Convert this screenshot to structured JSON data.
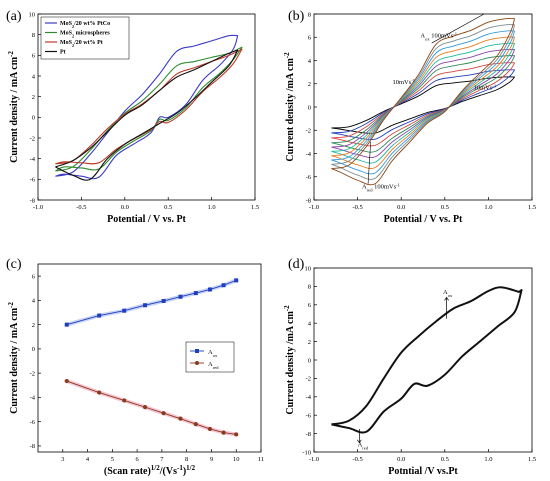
{
  "chart_data": [
    {
      "type": "line",
      "panel": "(a)",
      "xlabel": "Potential / V vs. Pt",
      "ylabel": "Current density / mA cm",
      "ylabel_sup": "-2",
      "xlim": [
        -1.0,
        1.5
      ],
      "ylim": [
        -8,
        10
      ],
      "xticks": [
        "-1.0",
        "-0.5",
        "0.0",
        "0.5",
        "1.0",
        "1.5"
      ],
      "yticks": [
        "-8",
        "-6",
        "-4",
        "-2",
        "0",
        "2",
        "4",
        "6",
        "8",
        "10"
      ],
      "legend_position": "top-left",
      "series": [
        {
          "name": "MoS2/20 wt% PtCo",
          "legend_main": "MoS",
          "legend_sub": "2",
          "legend_rest": "/20 wt% PtCo",
          "color": "#3b3bc8",
          "forward": [
            [
              -0.8,
              -5.7
            ],
            [
              -0.6,
              -5.3
            ],
            [
              -0.4,
              -3.6
            ],
            [
              -0.2,
              -1.5
            ],
            [
              0.0,
              0.6
            ],
            [
              0.2,
              2.2
            ],
            [
              0.4,
              4.2
            ],
            [
              0.6,
              6.4
            ],
            [
              0.8,
              6.9
            ],
            [
              1.0,
              7.4
            ],
            [
              1.2,
              7.9
            ],
            [
              1.3,
              7.9
            ]
          ],
          "reverse": [
            [
              1.3,
              7.9
            ],
            [
              1.25,
              6.6
            ],
            [
              1.1,
              5.1
            ],
            [
              0.9,
              3.6
            ],
            [
              0.7,
              1.2
            ],
            [
              0.5,
              0.0
            ],
            [
              0.4,
              0.0
            ],
            [
              0.3,
              -1.5
            ],
            [
              0.1,
              -2.6
            ],
            [
              -0.1,
              -3.7
            ],
            [
              -0.3,
              -5.8
            ],
            [
              -0.5,
              -5.7
            ],
            [
              -0.7,
              -5.5
            ],
            [
              -0.8,
              -5.7
            ]
          ]
        },
        {
          "name": "MoS2 microspheres",
          "legend_main": "MoS",
          "legend_sub": "2",
          "legend_rest": " microspheres",
          "color": "#2e8b2e",
          "forward": [
            [
              -0.8,
              -5.2
            ],
            [
              -0.6,
              -4.8
            ],
            [
              -0.4,
              -3.2
            ],
            [
              -0.2,
              -1.3
            ],
            [
              0.0,
              0.4
            ],
            [
              0.2,
              1.6
            ],
            [
              0.4,
              3.2
            ],
            [
              0.6,
              5.0
            ],
            [
              0.8,
              5.4
            ],
            [
              1.0,
              5.8
            ],
            [
              1.2,
              6.2
            ],
            [
              1.35,
              6.8
            ]
          ],
          "reverse": [
            [
              1.35,
              6.8
            ],
            [
              1.25,
              5.6
            ],
            [
              1.1,
              4.3
            ],
            [
              0.9,
              2.9
            ],
            [
              0.7,
              0.9
            ],
            [
              0.5,
              -0.3
            ],
            [
              0.4,
              -0.2
            ],
            [
              0.3,
              -1.3
            ],
            [
              0.1,
              -2.3
            ],
            [
              -0.1,
              -3.4
            ],
            [
              -0.3,
              -5.0
            ],
            [
              -0.5,
              -4.9
            ],
            [
              -0.7,
              -4.8
            ],
            [
              -0.8,
              -5.2
            ]
          ]
        },
        {
          "name": "MoS2/20 wt% Pt",
          "legend_main": "MoS",
          "legend_sub": "2",
          "legend_rest": "/20 wt% Pt",
          "color": "#c0392b",
          "forward": [
            [
              -0.8,
              -4.5
            ],
            [
              -0.6,
              -4.2
            ],
            [
              -0.4,
              -2.8
            ],
            [
              -0.2,
              -1.1
            ],
            [
              0.0,
              0.3
            ],
            [
              0.2,
              1.3
            ],
            [
              0.4,
              2.6
            ],
            [
              0.6,
              4.2
            ],
            [
              0.8,
              4.8
            ],
            [
              1.0,
              5.4
            ],
            [
              1.2,
              6.0
            ],
            [
              1.35,
              6.6
            ]
          ],
          "reverse": [
            [
              1.35,
              6.6
            ],
            [
              1.25,
              5.2
            ],
            [
              1.1,
              3.9
            ],
            [
              0.9,
              2.5
            ],
            [
              0.7,
              0.7
            ],
            [
              0.5,
              -0.5
            ],
            [
              0.4,
              -0.4
            ],
            [
              0.3,
              -1.2
            ],
            [
              0.1,
              -2.1
            ],
            [
              -0.1,
              -3.1
            ],
            [
              -0.3,
              -4.4
            ],
            [
              -0.5,
              -4.4
            ],
            [
              -0.7,
              -4.3
            ],
            [
              -0.8,
              -4.5
            ]
          ]
        },
        {
          "name": "Pt",
          "legend_main": "Pt",
          "legend_sub": "",
          "legend_rest": "",
          "color": "#111111",
          "forward": [
            [
              -0.8,
              -4.8
            ],
            [
              -0.6,
              -4.2
            ],
            [
              -0.4,
              -3.0
            ],
            [
              -0.2,
              -1.4
            ],
            [
              0.0,
              0.2
            ],
            [
              0.2,
              1.2
            ],
            [
              0.4,
              2.6
            ],
            [
              0.6,
              3.9
            ],
            [
              0.8,
              4.6
            ],
            [
              1.0,
              5.4
            ],
            [
              1.2,
              6.2
            ],
            [
              1.3,
              6.5
            ]
          ],
          "reverse": [
            [
              1.3,
              6.5
            ],
            [
              1.2,
              5.0
            ],
            [
              1.0,
              3.4
            ],
            [
              0.8,
              1.8
            ],
            [
              0.6,
              0.4
            ],
            [
              0.4,
              -0.6
            ],
            [
              0.2,
              -1.6
            ],
            [
              0.0,
              -2.6
            ],
            [
              -0.2,
              -4.0
            ],
            [
              -0.4,
              -6.0
            ],
            [
              -0.6,
              -5.6
            ],
            [
              -0.8,
              -4.8
            ]
          ]
        }
      ]
    },
    {
      "type": "line",
      "panel": "(b)",
      "xlabel": "Potential / V vs. Pt",
      "ylabel": "Current density /mA cm",
      "ylabel_sup": "-2",
      "xlim": [
        -1.0,
        1.5
      ],
      "ylim": [
        -8,
        8
      ],
      "xticks": [
        "-1.0",
        "-0.5",
        "0.0",
        "0.5",
        "1.0",
        "1.5"
      ],
      "yticks": [
        "-8",
        "-6",
        "-4",
        "-2",
        "0",
        "2",
        "4",
        "6",
        "8"
      ],
      "annotations": [
        {
          "main": "A",
          "sub": "ox",
          "rest": " 100mVs",
          "sup": "-1",
          "x": 0.22,
          "y": 6.0
        },
        {
          "main": "10mVs",
          "sub": "",
          "rest": "",
          "sup": "-1",
          "x": -0.1,
          "y": 2.0
        },
        {
          "main": "10mVs",
          "sub": "",
          "rest": "",
          "sup": "-1",
          "x": 0.83,
          "y": 1.5
        },
        {
          "main": "A",
          "sub": "red",
          "rest": " 100mVs",
          "sup": "-1",
          "x": -0.45,
          "y": -7.0
        }
      ],
      "curve_colors": [
        "#000000",
        "#1f3fbf",
        "#d64541",
        "#2e8b57",
        "#8e44ad",
        "#1abc9c",
        "#e67e22",
        "#3498db",
        "#7f8c8d",
        "#8b4513"
      ],
      "curve_scales": [
        0.34,
        0.42,
        0.5,
        0.58,
        0.65,
        0.72,
        0.79,
        0.86,
        0.93,
        1.0
      ],
      "base_forward": [
        [
          -0.8,
          -5.3
        ],
        [
          -0.6,
          -5.0
        ],
        [
          -0.4,
          -3.4
        ],
        [
          -0.2,
          -1.1
        ],
        [
          0.0,
          0.8
        ],
        [
          0.2,
          2.8
        ],
        [
          0.4,
          5.4
        ],
        [
          0.6,
          6.1
        ],
        [
          0.8,
          6.6
        ],
        [
          1.0,
          7.3
        ],
        [
          1.2,
          7.6
        ],
        [
          1.3,
          7.6
        ]
      ],
      "base_reverse": [
        [
          1.3,
          7.6
        ],
        [
          1.25,
          6.4
        ],
        [
          1.1,
          4.4
        ],
        [
          0.9,
          2.9
        ],
        [
          0.7,
          1.4
        ],
        [
          0.5,
          -0.4
        ],
        [
          0.3,
          -1.4
        ],
        [
          0.1,
          -3.0
        ],
        [
          -0.1,
          -4.6
        ],
        [
          -0.3,
          -6.6
        ],
        [
          -0.5,
          -6.3
        ],
        [
          -0.7,
          -5.6
        ],
        [
          -0.8,
          -5.3
        ]
      ]
    },
    {
      "type": "line",
      "panel": "(c)",
      "xlabel_main": "(Scan rate)",
      "xlabel_sup1": "1/2",
      "xlabel_mid": "/(Vs",
      "xlabel_sup2": "-1",
      "xlabel_end": ")",
      "xlabel_sup3": "1/2",
      "ylabel": "Current density / mA cm",
      "ylabel_sup": "-2",
      "xlim": [
        2,
        11
      ],
      "ylim": [
        -8.5,
        7
      ],
      "xticks": [
        "3",
        "4",
        "5",
        "6",
        "7",
        "8",
        "9",
        "10",
        "11"
      ],
      "yticks": [
        "-8",
        "-6",
        "-4",
        "-2",
        "0",
        "2",
        "4",
        "6"
      ],
      "legend_position": "center-right",
      "series": [
        {
          "name": "Aox",
          "legend_main": "A",
          "legend_sub": "ox",
          "color": "#1f3fbf",
          "marker": "square",
          "x": [
            3.16,
            4.47,
            5.48,
            6.32,
            7.07,
            7.75,
            8.37,
            8.94,
            9.49,
            10.0
          ],
          "y": [
            2.0,
            2.75,
            3.15,
            3.6,
            3.95,
            4.3,
            4.6,
            4.9,
            5.25,
            5.65
          ]
        },
        {
          "name": "Ared",
          "legend_main": "A",
          "legend_sub": "red",
          "color": "#8b3a1a",
          "marker": "circle",
          "x": [
            3.16,
            4.47,
            5.48,
            6.32,
            7.07,
            7.75,
            8.37,
            8.94,
            9.49,
            10.0
          ],
          "y": [
            -2.65,
            -3.6,
            -4.25,
            -4.8,
            -5.3,
            -5.75,
            -6.2,
            -6.6,
            -6.9,
            -7.05
          ]
        }
      ]
    },
    {
      "type": "line",
      "panel": "(d)",
      "xlabel": "Potntial /V vs.Pt",
      "ylabel": "Current density /mA cm",
      "ylabel_sup": "-2",
      "xlim": [
        -1.0,
        1.5
      ],
      "ylim": [
        -10,
        10
      ],
      "xticks": [
        "-1.0",
        "-0.5",
        "0.0",
        "0.5",
        "1.0",
        "1.5"
      ],
      "yticks": [
        "-10",
        "-8",
        "-6",
        "-4",
        "-2",
        "0",
        "2",
        "4",
        "6",
        "8",
        "10"
      ],
      "annotations": [
        {
          "main": "A",
          "sub": "ox",
          "x": 0.48,
          "y": 7.2
        },
        {
          "main": "A",
          "sub": "red",
          "x": -0.5,
          "y": -9.4
        }
      ],
      "forward": [
        [
          -0.8,
          -7.0
        ],
        [
          -0.6,
          -6.6
        ],
        [
          -0.4,
          -5.0
        ],
        [
          -0.2,
          -2.0
        ],
        [
          0.0,
          0.8
        ],
        [
          0.2,
          2.6
        ],
        [
          0.4,
          4.2
        ],
        [
          0.6,
          5.6
        ],
        [
          0.8,
          6.4
        ],
        [
          1.0,
          7.5
        ],
        [
          1.15,
          7.9
        ],
        [
          1.35,
          7.4
        ]
      ],
      "reverse": [
        [
          1.38,
          7.6
        ],
        [
          1.3,
          5.2
        ],
        [
          1.1,
          3.6
        ],
        [
          0.9,
          2.0
        ],
        [
          0.7,
          0.4
        ],
        [
          0.5,
          -1.6
        ],
        [
          0.3,
          -2.8
        ],
        [
          0.15,
          -2.6
        ],
        [
          0.0,
          -4.2
        ],
        [
          -0.2,
          -5.6
        ],
        [
          -0.4,
          -7.8
        ],
        [
          -0.6,
          -7.4
        ],
        [
          -0.8,
          -7.0
        ]
      ]
    }
  ]
}
